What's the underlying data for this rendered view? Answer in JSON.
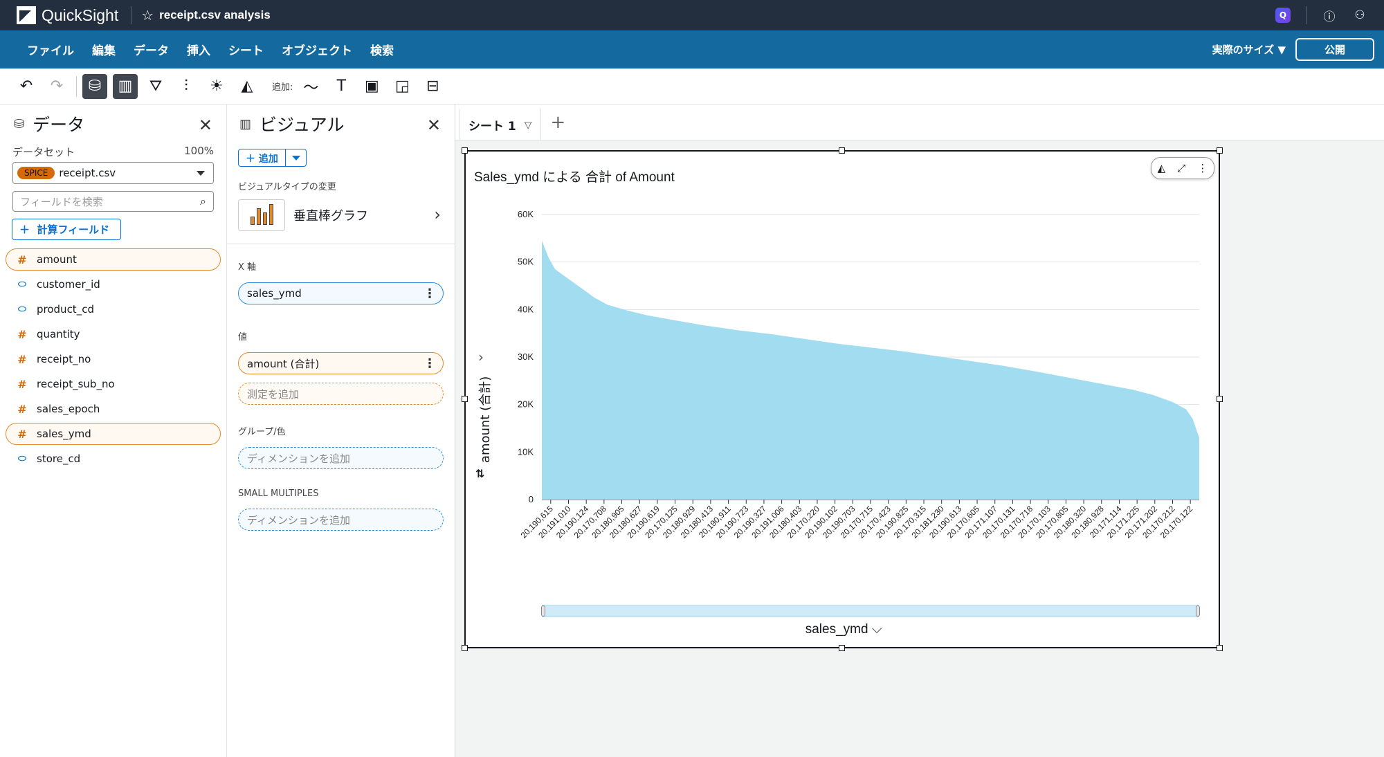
{
  "app": {
    "name": "QuickSight",
    "analysis_title": "receipt.csv analysis"
  },
  "menu": {
    "items": [
      "ファイル",
      "編集",
      "データ",
      "挿入",
      "シート",
      "オブジェクト",
      "検索"
    ],
    "size_label": "実際のサイズ",
    "publish_label": "公開"
  },
  "toolbar": {
    "add_label": "追加:"
  },
  "data_panel": {
    "title": "データ",
    "dataset_label": "データセット",
    "dataset_percent": "100%",
    "spice_badge": "SPICE",
    "dataset_name": "receipt.csv",
    "search_placeholder": "フィールドを検索",
    "calc_field_label": "計算フィールド",
    "fields": [
      {
        "name": "amount",
        "type": "measure",
        "selected": true
      },
      {
        "name": "customer_id",
        "type": "dimension",
        "selected": false
      },
      {
        "name": "product_cd",
        "type": "dimension",
        "selected": false
      },
      {
        "name": "quantity",
        "type": "measure",
        "selected": false
      },
      {
        "name": "receipt_no",
        "type": "measure",
        "selected": false
      },
      {
        "name": "receipt_sub_no",
        "type": "measure",
        "selected": false
      },
      {
        "name": "sales_epoch",
        "type": "measure",
        "selected": false
      },
      {
        "name": "sales_ymd",
        "type": "measure",
        "selected": true
      },
      {
        "name": "store_cd",
        "type": "dimension",
        "selected": false
      }
    ]
  },
  "visual_panel": {
    "title": "ビジュアル",
    "add_label": "追加",
    "change_type_label": "ビジュアルタイプの変更",
    "visual_type": "垂直棒グラフ",
    "x_axis_label": "X 軸",
    "x_axis_field": "sales_ymd",
    "value_label": "値",
    "value_field": "amount (合計)",
    "add_measure": "測定を追加",
    "group_label": "グループ/色",
    "add_dimension": "ディメンションを追加",
    "small_multiples_label": "SMALL MULTIPLES",
    "add_dimension2": "ディメンションを追加"
  },
  "sheet": {
    "tab_label": "シート 1"
  },
  "chart_data": {
    "type": "bar",
    "title": "Sales_ymd による 合計 of Amount",
    "xlabel": "sales_ymd",
    "ylabel": "amount (合計)",
    "ylim": [
      0,
      60000
    ],
    "yticks": [
      "0",
      "10K",
      "20K",
      "30K",
      "40K",
      "50K",
      "60K"
    ],
    "ytick_values": [
      0,
      10000,
      20000,
      30000,
      40000,
      50000,
      60000
    ],
    "grid": true,
    "color": "#a2dcf1",
    "sort": "descending",
    "x_tick_labels": [
      "20,190,615",
      "20,191,010",
      "20,190,124",
      "20,170,708",
      "20,180,905",
      "20,180,627",
      "20,190,619",
      "20,170,125",
      "20,180,929",
      "20,180,413",
      "20,190,911",
      "20,190,723",
      "20,190,327",
      "20,191,006",
      "20,180,403",
      "20,170,220",
      "20,190,102",
      "20,190,703",
      "20,170,715",
      "20,170,423",
      "20,190,825",
      "20,170,315",
      "20,181,230",
      "20,190,613",
      "20,170,605",
      "20,171,107",
      "20,170,131",
      "20,170,718",
      "20,170,103",
      "20,170,805",
      "20,180,320",
      "20,180,928",
      "20,171,114",
      "20,171,225",
      "20,171,202",
      "20,170,212",
      "20,170,122"
    ],
    "profile_points": [
      [
        0,
        54500
      ],
      [
        0.01,
        51000
      ],
      [
        0.02,
        48500
      ],
      [
        0.04,
        46500
      ],
      [
        0.06,
        44500
      ],
      [
        0.08,
        42500
      ],
      [
        0.1,
        41000
      ],
      [
        0.13,
        39800
      ],
      [
        0.16,
        38800
      ],
      [
        0.2,
        37800
      ],
      [
        0.25,
        36600
      ],
      [
        0.3,
        35600
      ],
      [
        0.35,
        34800
      ],
      [
        0.4,
        33800
      ],
      [
        0.45,
        32800
      ],
      [
        0.5,
        32000
      ],
      [
        0.55,
        31200
      ],
      [
        0.6,
        30200
      ],
      [
        0.65,
        29200
      ],
      [
        0.7,
        28200
      ],
      [
        0.75,
        27000
      ],
      [
        0.8,
        25700
      ],
      [
        0.85,
        24400
      ],
      [
        0.9,
        23100
      ],
      [
        0.93,
        22000
      ],
      [
        0.96,
        20500
      ],
      [
        0.98,
        19000
      ],
      [
        0.99,
        17000
      ],
      [
        1.0,
        13000
      ]
    ]
  }
}
